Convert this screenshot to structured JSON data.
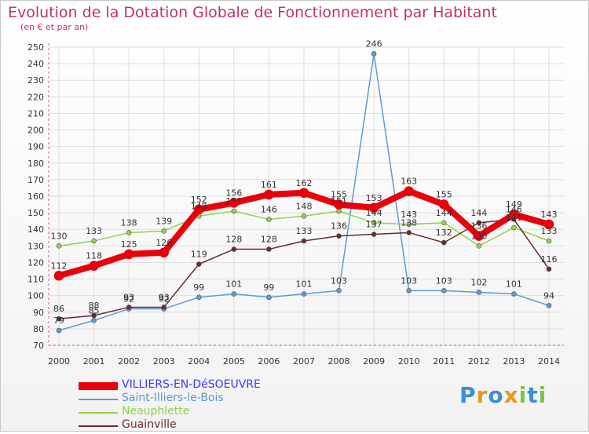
{
  "title": "Evolution de la Dotation Globale de Fonctionnement par Habitant",
  "subtitle": "(en € et par an)",
  "logo": {
    "text": "Proxiti",
    "letters": [
      "P",
      "r",
      "o",
      "x",
      "i",
      "t",
      "i"
    ],
    "colors": [
      "#3a8fd6",
      "#e69a1c",
      "#3a8fd6",
      "#e69a1c",
      "#7cc242",
      "#3a8fd6",
      "#7cc242"
    ]
  },
  "colors": {
    "axis": "#d25a8c",
    "grid": "#dddddd",
    "text": "#333333"
  },
  "chart_data": {
    "type": "line",
    "title": "Evolution de la Dotation Globale de Fonctionnement par Habitant",
    "ylabel": "(en € et par an)",
    "x": [
      "2000",
      "2001",
      "2002",
      "2003",
      "2004",
      "2005",
      "2006",
      "2007",
      "2008",
      "2009",
      "2010",
      "2011",
      "2012",
      "2013",
      "2014"
    ],
    "ylim": [
      70,
      250
    ],
    "yticks": [
      70,
      80,
      90,
      100,
      110,
      120,
      130,
      140,
      150,
      160,
      170,
      180,
      190,
      200,
      210,
      220,
      230,
      240,
      250
    ],
    "series": [
      {
        "name": "VILLIERS-EN-DéSOEUVRE",
        "color": "#e8000d",
        "width": 8,
        "values": [
          112,
          118,
          125,
          126,
          152,
          156,
          161,
          162,
          155,
          153,
          163,
          155,
          136,
          149,
          143
        ],
        "labels": [
          "112",
          "118",
          "125",
          "126",
          "152",
          "156",
          "161",
          "162",
          "155",
          "153",
          "163",
          "155",
          "136",
          "149",
          "143"
        ]
      },
      {
        "name": "Saint-Illiers-le-Bois",
        "color": "#5b9bd5",
        "width": 1.5,
        "values": [
          79,
          85,
          92,
          92,
          99,
          101,
          99,
          101,
          103,
          246,
          103,
          103,
          102,
          101,
          94
        ],
        "labels": [
          "79",
          "85",
          "92",
          "92",
          "99",
          "101",
          "99",
          "101",
          "103",
          "246",
          "103",
          "103",
          "102",
          "101",
          "94"
        ]
      },
      {
        "name": "Neauphlette",
        "color": "#8fd14f",
        "width": 1.5,
        "values": [
          130,
          133,
          138,
          139,
          148,
          151,
          146,
          148,
          151,
          144,
          143,
          144,
          130,
          141,
          133
        ],
        "labels": [
          "130",
          "133",
          "138",
          "139",
          "148",
          "151",
          "146",
          "148",
          "151",
          "144",
          "143",
          "144",
          "130",
          "141",
          "133"
        ]
      },
      {
        "name": "Guainville",
        "color": "#6b2a2a",
        "width": 1.5,
        "values": [
          86,
          88,
          93,
          93,
          119,
          128,
          128,
          133,
          136,
          137,
          138,
          132,
          144,
          146,
          116
        ],
        "labels": [
          "86",
          "88",
          "93",
          "93",
          "119",
          "128",
          "128",
          "133",
          "136",
          "137",
          "138",
          "132",
          "144",
          "146",
          "116"
        ]
      }
    ]
  }
}
